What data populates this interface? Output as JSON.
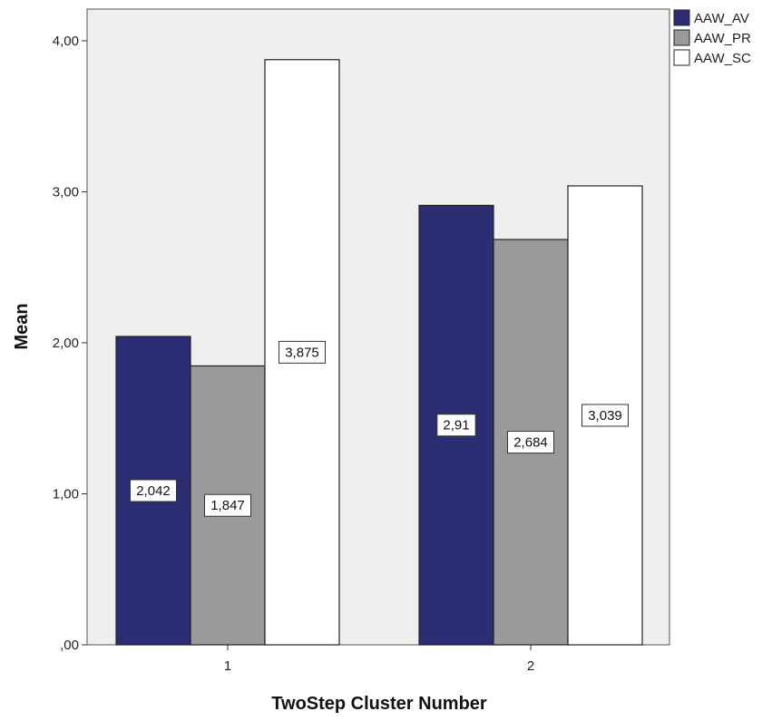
{
  "chart_data": {
    "type": "bar",
    "categories": [
      "1",
      "2"
    ],
    "series": [
      {
        "name": "AAW_AV",
        "values": [
          2.042,
          2.91
        ],
        "labels": [
          "2,042",
          "2,91"
        ],
        "color": "#2a2d72"
      },
      {
        "name": "AAW_PR",
        "values": [
          1.847,
          2.684
        ],
        "labels": [
          "1,847",
          "2,684"
        ],
        "color": "#9a9a9a"
      },
      {
        "name": "AAW_SC",
        "values": [
          3.875,
          3.039
        ],
        "labels": [
          "3,875",
          "3,039"
        ],
        "color": "#ffffff"
      }
    ],
    "xlabel": "TwoStep Cluster Number",
    "ylabel": "Mean",
    "ylim": [
      0,
      4.0
    ],
    "yticks": [
      0,
      1,
      2,
      3,
      4
    ],
    "ytick_labels": [
      ",00",
      "1,00",
      "2,00",
      "3,00",
      "4,00"
    ],
    "plot_background": "#efefef",
    "grid": false,
    "legend_position": "top-right"
  }
}
